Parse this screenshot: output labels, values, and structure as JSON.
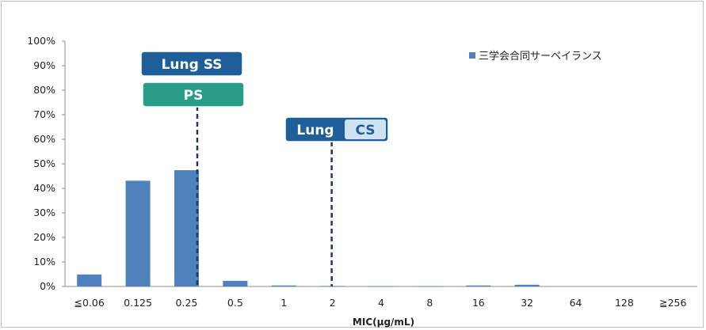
{
  "chart_data": {
    "type": "bar",
    "categories": [
      "≦0.06",
      "0.125",
      "0.25",
      "0.5",
      "1",
      "2",
      "4",
      "8",
      "16",
      "32",
      "64",
      "128",
      "≧256"
    ],
    "series": [
      {
        "name": "三学会合同サーベイランス",
        "values": [
          4.9,
          43.1,
          47.4,
          2.3,
          0.4,
          0.2,
          0.1,
          0.1,
          0.4,
          0.7,
          0.0,
          0.0,
          0.0
        ]
      }
    ],
    "ylim": [
      0,
      100
    ],
    "yticks": [
      "0%",
      "10%",
      "20%",
      "30%",
      "40%",
      "50%",
      "60%",
      "70%",
      "80%",
      "90%",
      "100%"
    ],
    "xlabel": "MIC(μg/mL)",
    "ylabel": "",
    "legend_position": "top-right",
    "bar_color": "#4f81bd",
    "grid": false,
    "breakpoints": [
      {
        "name": "lung-ss",
        "label": "Lung SS",
        "category": "0.25",
        "color": "#1e5f99"
      },
      {
        "name": "ps",
        "label": "PS",
        "category": "0.25",
        "color": "#2a9d88"
      },
      {
        "name": "lung-cs",
        "label": "Lung",
        "label2": "CS",
        "category": "2",
        "color": "#1e5f99",
        "color2": "#cfe2f3"
      }
    ]
  }
}
